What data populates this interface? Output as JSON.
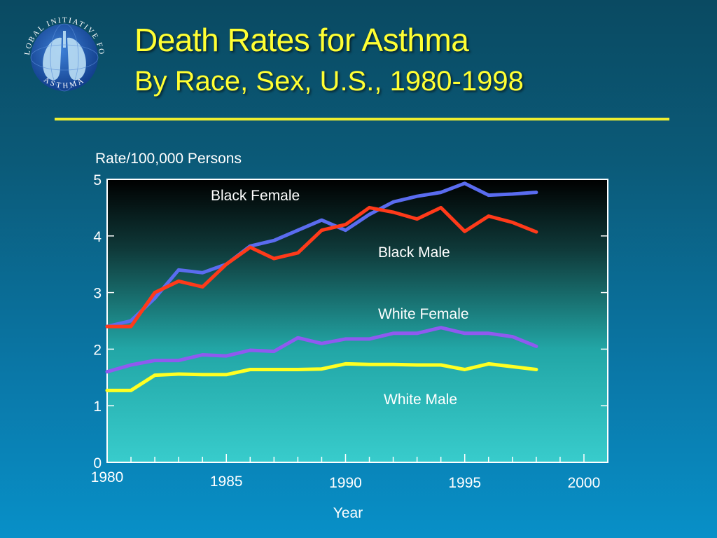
{
  "slide": {
    "title": "Death Rates for Asthma",
    "subtitle": "By Race, Sex, U.S., 1980-1998"
  },
  "logo": {
    "top_text": "GLOBAL INITIATIVE FOR",
    "bottom_text": "ASTHMA",
    "icon": "lungs-globe-icon"
  },
  "colors": {
    "title": "#ffff33",
    "rule": "#eeee30",
    "black_female": "#5a6cf0",
    "black_male": "#ff3a1a",
    "white_female": "#8f5af0",
    "white_male": "#ffff22"
  },
  "chart_data": {
    "type": "line",
    "title": "",
    "ylabel": "Rate/100,000 Persons",
    "xlabel": "Year",
    "xlim": [
      1980,
      2001
    ],
    "ylim": [
      0,
      5
    ],
    "yticks": [
      0,
      1,
      2,
      3,
      4,
      5
    ],
    "xticks": [
      1980,
      1985,
      1990,
      1995,
      2000
    ],
    "grid": false,
    "x": [
      1980,
      1981,
      1982,
      1983,
      1984,
      1985,
      1986,
      1987,
      1988,
      1989,
      1990,
      1991,
      1992,
      1993,
      1994,
      1995,
      1996,
      1997,
      1998
    ],
    "series": [
      {
        "name": "Black Female",
        "color": "#5a6cf0",
        "values": [
          2.4,
          2.5,
          2.9,
          3.4,
          3.35,
          3.5,
          3.82,
          3.92,
          4.1,
          4.28,
          4.1,
          4.38,
          4.6,
          4.7,
          4.77,
          4.93,
          4.72,
          4.74,
          4.77
        ]
      },
      {
        "name": "Black Male",
        "color": "#ff3a1a",
        "values": [
          2.4,
          2.4,
          3.0,
          3.2,
          3.1,
          3.5,
          3.8,
          3.6,
          3.7,
          4.1,
          4.2,
          4.5,
          4.42,
          4.3,
          4.5,
          4.08,
          4.35,
          4.24,
          4.07
        ]
      },
      {
        "name": "White Female",
        "color": "#8f5af0",
        "values": [
          1.6,
          1.72,
          1.8,
          1.8,
          1.9,
          1.88,
          1.98,
          1.96,
          2.2,
          2.1,
          2.18,
          2.18,
          2.28,
          2.28,
          2.38,
          2.28,
          2.28,
          2.22,
          2.05
        ]
      },
      {
        "name": "White Male",
        "color": "#ffff22",
        "values": [
          1.27,
          1.27,
          1.54,
          1.56,
          1.55,
          1.55,
          1.64,
          1.64,
          1.64,
          1.65,
          1.74,
          1.73,
          1.73,
          1.72,
          1.72,
          1.64,
          1.74,
          1.69,
          1.64
        ]
      }
    ]
  }
}
